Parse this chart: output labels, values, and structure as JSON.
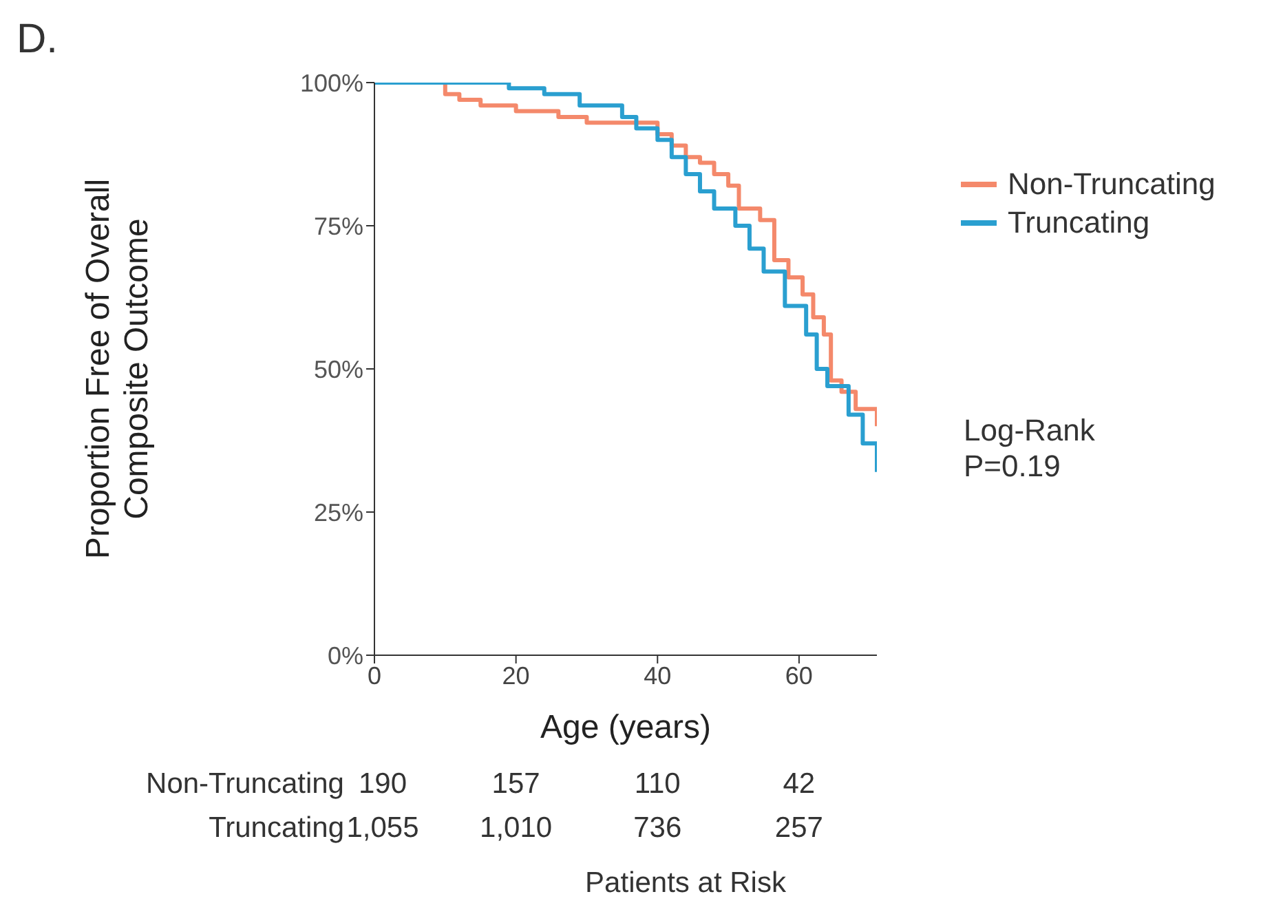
{
  "chart_data": {
    "type": "step",
    "xlabel": "Age (years)",
    "ylabel": "Proportion Free of Overall\nComposite Outcome",
    "xlim": [
      0,
      71
    ],
    "xticks": [
      0,
      20,
      40,
      60
    ],
    "ylim": [
      0,
      100
    ],
    "yticks": [
      {
        "value": 0,
        "label": "0%"
      },
      {
        "value": 25,
        "label": "25%"
      },
      {
        "value": 50,
        "label": "50%"
      },
      {
        "value": 75,
        "label": "75%"
      },
      {
        "value": 100,
        "label": "100%"
      }
    ],
    "legend": "right",
    "marker": "none",
    "line_style": "solid",
    "series": [
      {
        "name": "Non-Truncating",
        "color": "#f4896b",
        "x": [
          0,
          10,
          12,
          15,
          20,
          26,
          30,
          35,
          40,
          42,
          44,
          46,
          48,
          50,
          51.5,
          54.5,
          56.5,
          58.5,
          60.5,
          62,
          63.5,
          64.5,
          66,
          68,
          71
        ],
        "values": [
          100,
          98,
          97,
          96,
          95,
          94,
          93,
          93,
          91,
          89,
          87,
          86,
          84,
          82,
          78,
          76,
          69,
          66,
          63,
          59,
          56,
          48,
          46,
          43,
          40
        ]
      },
      {
        "name": "Truncating",
        "color": "#2a9fd0",
        "x": [
          0,
          15,
          19,
          24,
          29,
          35,
          37,
          40,
          42,
          44,
          46,
          48,
          51,
          53,
          55,
          58,
          61,
          62.5,
          64,
          67,
          69,
          71
        ],
        "values": [
          100,
          100,
          99,
          98,
          96,
          94,
          92,
          90,
          87,
          84,
          81,
          78,
          75,
          71,
          67,
          61,
          56,
          50,
          47,
          42,
          37,
          32
        ]
      }
    ],
    "annotations": [
      "D.",
      "Log-Rank\nP=0.19",
      "Non-Truncating",
      "190",
      "157",
      "110",
      "42",
      "Truncating",
      "1,055",
      "1,010",
      "736",
      "257",
      "Patients at Risk"
    ]
  }
}
